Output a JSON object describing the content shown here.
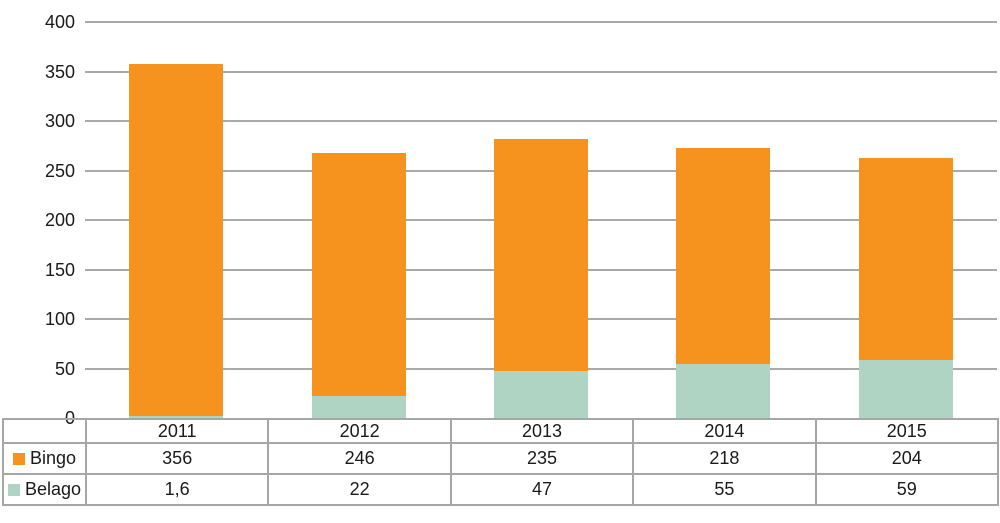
{
  "chart_data": {
    "type": "bar",
    "stacked": true,
    "title": "",
    "xlabel": "",
    "ylabel": "",
    "categories": [
      "2011",
      "2012",
      "2013",
      "2014",
      "2015"
    ],
    "series": [
      {
        "name": "Bingo",
        "color": "#f6921e",
        "values": [
          356,
          246,
          235,
          218,
          204
        ],
        "display_values": [
          "356",
          "246",
          "235",
          "218",
          "204"
        ]
      },
      {
        "name": "Belago",
        "color": "#afd4c3",
        "values": [
          1.6,
          22,
          47,
          55,
          59
        ],
        "display_values": [
          "1,6",
          "22",
          "47",
          "55",
          "59"
        ]
      }
    ],
    "stack_order_bottom_to_top": [
      "Belago",
      "Bingo"
    ],
    "ylim": [
      0,
      400
    ],
    "y_ticks": [
      "0",
      "50",
      "100",
      "150",
      "200",
      "250",
      "300",
      "350",
      "400"
    ],
    "grid": true,
    "legend_position": "table-rows-left"
  },
  "colors": {
    "background": "#ffffff",
    "gridline": "#a9a9a9",
    "table_border": "#a6a6a6",
    "text": "#1a1a1a",
    "bingo": "#f6921e",
    "belago": "#afd4c3"
  }
}
